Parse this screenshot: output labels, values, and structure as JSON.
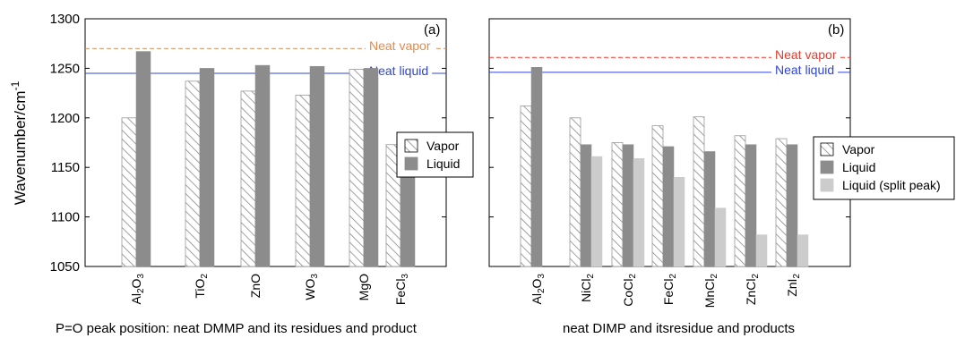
{
  "colors": {
    "vapor_hatch": "#888888",
    "liquid": "#8c8c8c",
    "split": "#cccccc",
    "neat_vapor": "#e8392a",
    "neat_vapor_left": "#e8894a",
    "neat_liquid": "#2f45d8"
  },
  "chart_data": [
    {
      "type": "bar",
      "panel": "(a)",
      "ylabel_base": "Wavenumber/cm",
      "ylabel_exp": "-1",
      "ylim": [
        1050,
        1300
      ],
      "yticks": [
        1050,
        1100,
        1150,
        1200,
        1250,
        1300
      ],
      "caption": "P=O peak position: neat DMMP and its residues and product",
      "categories": [
        {
          "base": "Al",
          "sub1": "2",
          "mid": "O",
          "sub2": "3"
        },
        {
          "base": "TiO",
          "sub1": "2",
          "mid": "",
          "sub2": ""
        },
        {
          "base": "ZnO",
          "sub1": "",
          "mid": "",
          "sub2": ""
        },
        {
          "base": "WO",
          "sub1": "3",
          "mid": "",
          "sub2": ""
        },
        {
          "base": "MgO",
          "sub1": "",
          "mid": "",
          "sub2": ""
        },
        {
          "base": "FeCl",
          "sub1": "3",
          "mid": "",
          "sub2": ""
        }
      ],
      "series": [
        {
          "name": "Vapor",
          "style": "hatch",
          "values": [
            1200,
            1237,
            1227,
            1223,
            1249,
            1173
          ]
        },
        {
          "name": "Liquid",
          "style": "solid",
          "values": [
            1267,
            1250,
            1253,
            1252,
            1250,
            1143
          ]
        }
      ],
      "reference_lines": [
        {
          "label": "Neat vapor",
          "value": 1270,
          "style": "dashed",
          "color_key": "neat_vapor_left"
        },
        {
          "label": "Neat liquid",
          "value": 1245,
          "style": "solid",
          "color_key": "neat_liquid"
        }
      ],
      "legend": {
        "position": "right",
        "entries": [
          "Vapor",
          "Liquid"
        ]
      }
    },
    {
      "type": "bar",
      "panel": "(b)",
      "ylim": [
        1050,
        1300
      ],
      "caption": "neat DIMP and itsresidue and products",
      "categories": [
        {
          "base": "Al",
          "sub1": "2",
          "mid": "O",
          "sub2": "3"
        },
        {
          "base": "NiCl",
          "sub1": "2",
          "mid": "",
          "sub2": ""
        },
        {
          "base": "CoCl",
          "sub1": "2",
          "mid": "",
          "sub2": ""
        },
        {
          "base": "FeCl",
          "sub1": "2",
          "mid": "",
          "sub2": ""
        },
        {
          "base": "MnCl",
          "sub1": "2",
          "mid": "",
          "sub2": ""
        },
        {
          "base": "ZnCl",
          "sub1": "2",
          "mid": "",
          "sub2": ""
        },
        {
          "base": "ZnI",
          "sub1": "2",
          "mid": "",
          "sub2": ""
        }
      ],
      "series": [
        {
          "name": "Vapor",
          "style": "hatch",
          "values": [
            1212,
            1200,
            1175,
            1192,
            1201,
            1182,
            1179
          ]
        },
        {
          "name": "Liquid",
          "style": "solid",
          "values": [
            1251,
            1173,
            1173,
            1171,
            1166,
            1173,
            1173
          ]
        },
        {
          "name": "Liquid (split peak)",
          "style": "light",
          "values": [
            null,
            1161,
            1159,
            1140,
            1109,
            1082,
            1082
          ]
        }
      ],
      "reference_lines": [
        {
          "label": "Neat vapor",
          "value": 1261,
          "style": "dashed",
          "color_key": "neat_vapor"
        },
        {
          "label": "Neat liquid",
          "value": 1246,
          "style": "solid",
          "color_key": "neat_liquid"
        }
      ],
      "legend": {
        "position": "right",
        "entries": [
          "Vapor",
          "Liquid",
          "Liquid (split peak)"
        ]
      }
    }
  ]
}
